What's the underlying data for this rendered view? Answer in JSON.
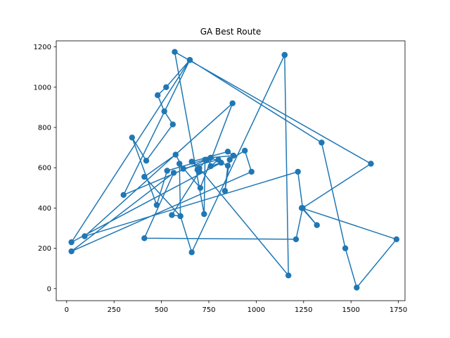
{
  "chart_data": {
    "type": "line",
    "title": "GA Best Route",
    "xlabel": "",
    "ylabel": "",
    "xlim": [
      -55,
      1785
    ],
    "ylim": [
      -60,
      1230
    ],
    "xticks": [
      0,
      250,
      500,
      750,
      1000,
      1250,
      1500,
      1750
    ],
    "yticks": [
      0,
      200,
      400,
      600,
      800,
      1000,
      1200
    ],
    "grid": false,
    "line_color": "#1f77b4",
    "marker": "circle",
    "series": [
      {
        "points": [
          [
            1150,
            1160
          ],
          [
            1170,
            65
          ],
          [
            700,
            598
          ],
          [
            660,
            630
          ],
          [
            850,
            680
          ],
          [
            880,
            660
          ],
          [
            760,
            650
          ],
          [
            850,
            610
          ],
          [
            835,
            485
          ],
          [
            860,
            640
          ],
          [
            940,
            685
          ],
          [
            975,
            580
          ],
          [
            25,
            185
          ],
          [
            565,
            575
          ],
          [
            410,
            250
          ],
          [
            1210,
            245
          ],
          [
            1245,
            400
          ],
          [
            1605,
            620
          ],
          [
            570,
            1175
          ],
          [
            725,
            370
          ],
          [
            730,
            640
          ],
          [
            530,
            585
          ],
          [
            475,
            415
          ],
          [
            345,
            750
          ],
          [
            420,
            635
          ],
          [
            560,
            815
          ],
          [
            515,
            880
          ],
          [
            480,
            960
          ],
          [
            525,
            1000
          ],
          [
            650,
            1135
          ],
          [
            25,
            230
          ],
          [
            815,
            625
          ],
          [
            760,
            608
          ],
          [
            800,
            640
          ],
          [
            615,
            595
          ],
          [
            575,
            665
          ],
          [
            410,
            555
          ],
          [
            600,
            360
          ],
          [
            595,
            620
          ],
          [
            705,
            500
          ],
          [
            875,
            920
          ],
          [
            95,
            260
          ],
          [
            1220,
            580
          ],
          [
            1245,
            400
          ],
          [
            1320,
            315
          ],
          [
            1240,
            400
          ],
          [
            1740,
            245
          ],
          [
            1530,
            5
          ],
          [
            1470,
            200
          ],
          [
            1345,
            725
          ],
          [
            650,
            1135
          ],
          [
            650,
            1135
          ],
          [
            300,
            465
          ],
          [
            740,
            640
          ],
          [
            690,
            590
          ],
          [
            700,
            580
          ],
          [
            555,
            365
          ],
          [
            600,
            360
          ],
          [
            660,
            180
          ],
          [
            1150,
            1160
          ]
        ]
      }
    ]
  }
}
